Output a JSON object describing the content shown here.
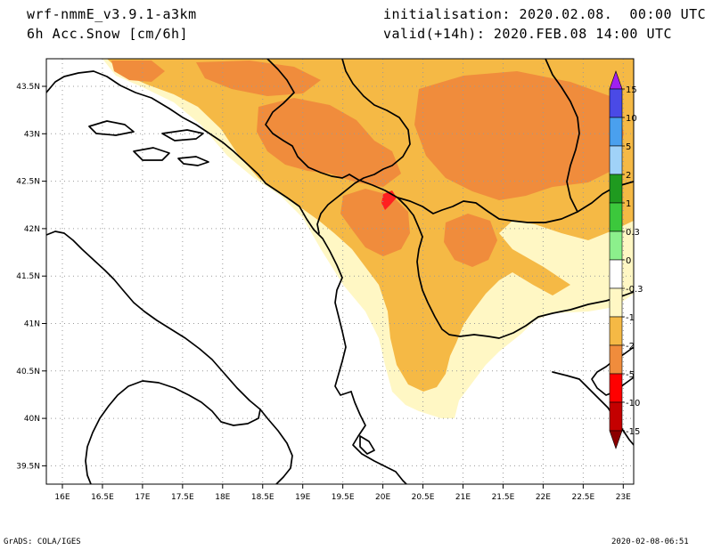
{
  "header": {
    "model": "wrf-nmmE_v3.9.1-a3km",
    "field": "6h Acc.Snow [cm/6h]",
    "init": "initialisation: 2020.02.08.  00:00 UTC",
    "valid": "valid(+14h): 2020.FEB.08 14:00 UTC"
  },
  "footer": {
    "left": "GrADS: COLA/IGES",
    "right": "2020-02-08-06:51"
  },
  "map": {
    "lat_labels": [
      "43.5N",
      "43N",
      "42.5N",
      "42N",
      "41.5N",
      "41N",
      "40.5N",
      "40N",
      "39.5N"
    ],
    "lon_labels": [
      "16E",
      "16.5E",
      "17E",
      "17.5E",
      "18E",
      "18.5E",
      "19E",
      "19.5E",
      "20E",
      "20.5E",
      "21E",
      "21.5E",
      "22E",
      "22.5E",
      "23E"
    ],
    "colors": {
      "coastline": "#000000",
      "grid": "#9a9a9a",
      "snow_light": "#fff7c4",
      "snow_mid": "#f5b945",
      "snow_heavy": "#f08c3c",
      "snow_peak": "#ff2020"
    }
  },
  "legend": {
    "labels": [
      "15",
      "10",
      "5",
      "2",
      "1",
      "0.3",
      "0",
      "-0.3",
      "-1",
      "-2",
      "-5",
      "-10",
      "-15"
    ],
    "colors": [
      "#a020f0",
      "#4a4ae6",
      "#4aa0ee",
      "#a0d2f8",
      "#1f9a1f",
      "#3cc83c",
      "#8cf08c",
      "#ffffff",
      "#fff7c4",
      "#f5b945",
      "#f08c3c",
      "#ff0000",
      "#c40000",
      "#8b0000"
    ]
  }
}
